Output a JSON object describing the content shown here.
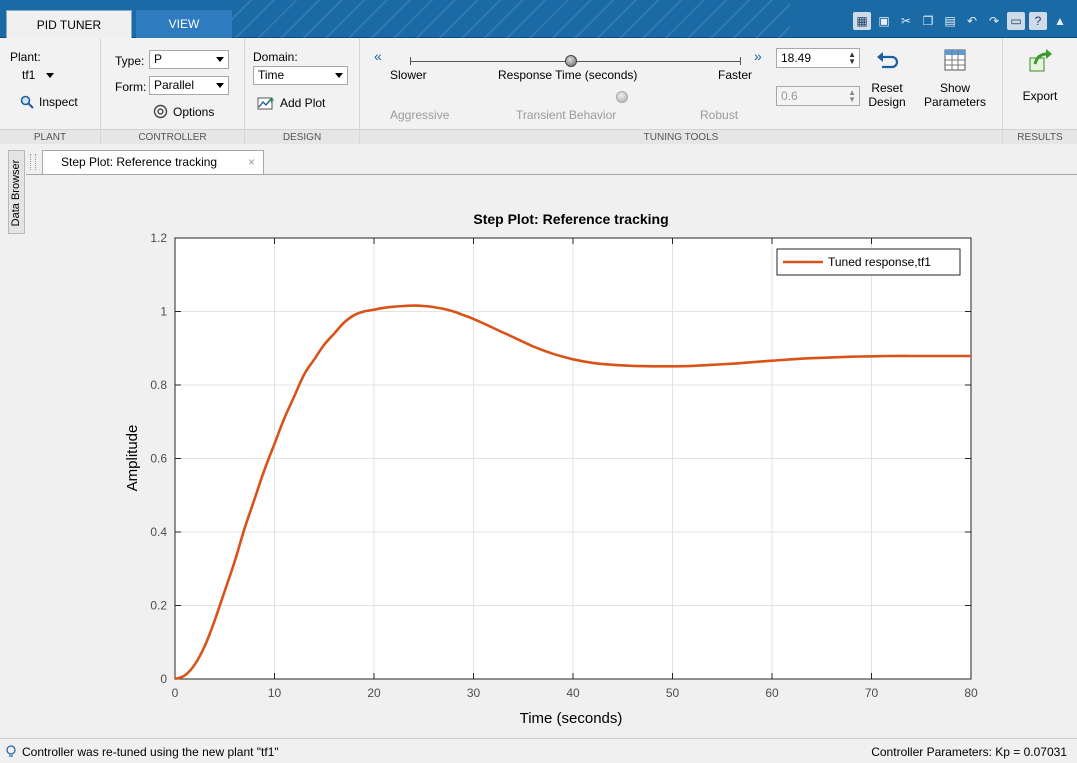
{
  "tabs": [
    {
      "label": "PID TUNER",
      "active": true
    },
    {
      "label": "VIEW",
      "active": false
    }
  ],
  "quick_access_icons": [
    "plot-icon",
    "save-icon",
    "cut-icon",
    "copy-icon",
    "paste-icon",
    "undo-icon",
    "redo-icon",
    "window-icon",
    "help-icon",
    "collapse-icon"
  ],
  "ribbon": {
    "plant": {
      "label": "Plant:",
      "value": "tf1",
      "inspect_label": "Inspect",
      "section": "PLANT"
    },
    "controller": {
      "type_label": "Type:",
      "type_value": "P",
      "form_label": "Form:",
      "form_value": "Parallel",
      "options_label": "Options",
      "section": "CONTROLLER"
    },
    "design": {
      "domain_label": "Domain:",
      "domain_value": "Time",
      "add_plot_label": "Add Plot",
      "section": "DESIGN"
    },
    "tuning": {
      "slower_label": "Slower",
      "response_time_label": "Response Time (seconds)",
      "faster_label": "Faster",
      "response_time_value": "18.49",
      "aggressive_label": "Aggressive",
      "transient_label": "Transient Behavior",
      "robust_label": "Robust",
      "transient_value": "0.6",
      "reset_label_1": "Reset",
      "reset_label_2": "Design",
      "show_label_1": "Show",
      "show_label_2": "Parameters",
      "section": "TUNING TOOLS"
    },
    "results": {
      "export_label": "Export",
      "section": "RESULTS"
    }
  },
  "side_panel": {
    "label": "Data Browser"
  },
  "document_tab": {
    "label": "Step Plot: Reference tracking",
    "close": "×"
  },
  "chart_data": {
    "type": "line",
    "title": "Step Plot: Reference tracking",
    "xlabel": "Time (seconds)",
    "ylabel": "Amplitude",
    "xlim": [
      0,
      80
    ],
    "ylim": [
      0,
      1.2
    ],
    "xticks": [
      0,
      10,
      20,
      30,
      40,
      50,
      60,
      70,
      80
    ],
    "yticks": [
      0,
      0.2,
      0.4,
      0.6,
      0.8,
      1,
      1.2
    ],
    "ytick_labels": [
      "0",
      "0.2",
      "0.4",
      "0.6",
      "0.8",
      "1",
      "1.2"
    ],
    "grid": true,
    "legend_position": "top-right",
    "series": [
      {
        "name": "Tuned response,tf1",
        "color": "#d95319",
        "x": [
          0,
          1,
          2,
          3,
          4,
          5,
          6,
          7,
          8,
          9,
          10,
          11,
          12,
          13,
          14,
          15,
          16,
          17,
          18,
          19,
          20,
          21,
          22,
          23,
          24,
          25,
          26,
          27,
          28,
          29,
          30,
          32,
          34,
          36,
          38,
          40,
          42,
          44,
          46,
          48,
          50,
          52,
          54,
          56,
          58,
          60,
          62,
          64,
          66,
          68,
          70,
          72,
          74,
          76,
          78,
          80
        ],
        "y": [
          0,
          0.01,
          0.04,
          0.09,
          0.16,
          0.24,
          0.32,
          0.41,
          0.49,
          0.57,
          0.64,
          0.71,
          0.77,
          0.83,
          0.87,
          0.91,
          0.94,
          0.97,
          0.99,
          1.0,
          1.005,
          1.01,
          1.013,
          1.015,
          1.016,
          1.015,
          1.012,
          1.007,
          1.0,
          0.99,
          0.98,
          0.955,
          0.93,
          0.905,
          0.885,
          0.87,
          0.86,
          0.855,
          0.852,
          0.851,
          0.851,
          0.852,
          0.855,
          0.858,
          0.862,
          0.866,
          0.87,
          0.873,
          0.875,
          0.877,
          0.878,
          0.879,
          0.879,
          0.879,
          0.879,
          0.879
        ]
      }
    ]
  },
  "status": {
    "message": "Controller was re-tuned using the new plant \"tf1\"",
    "parameters": "Controller Parameters: Kp = 0.07031"
  }
}
